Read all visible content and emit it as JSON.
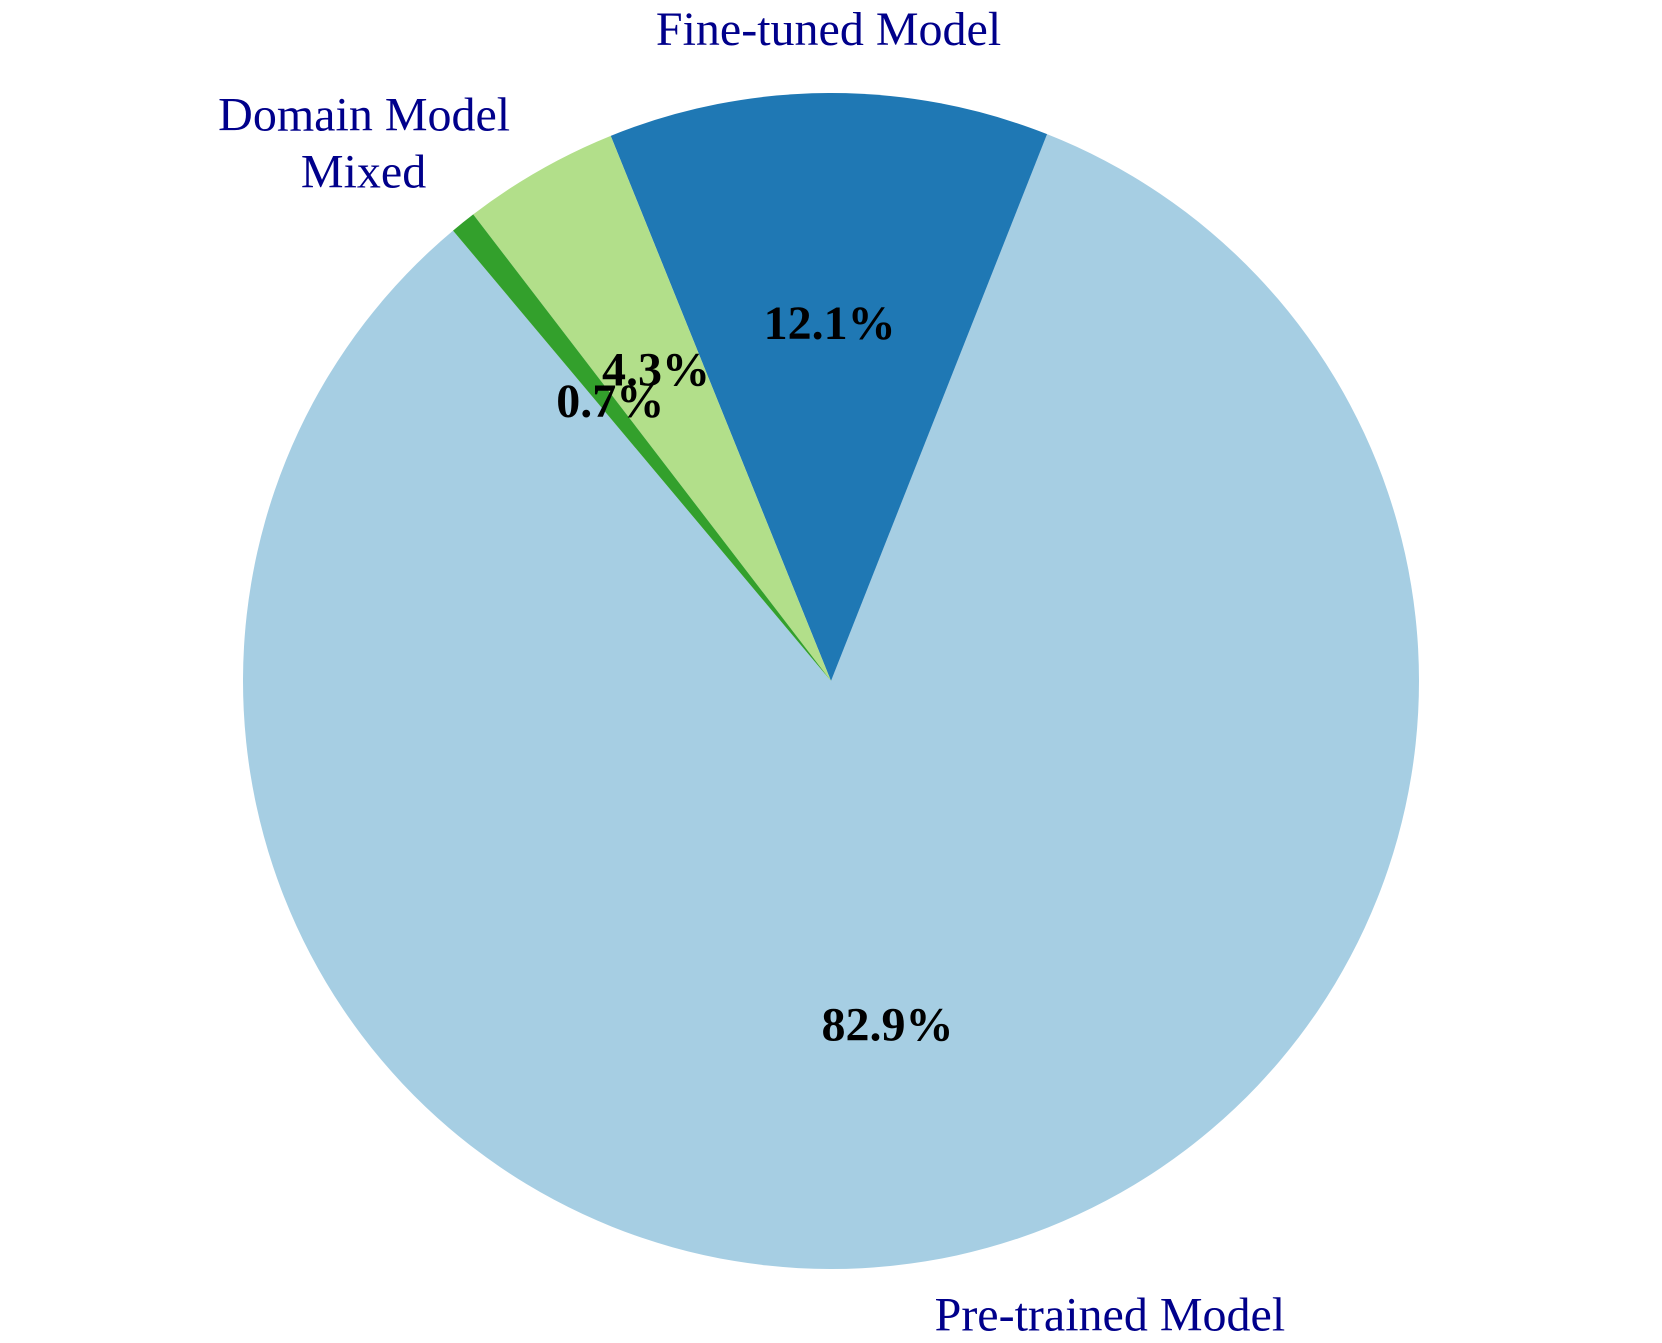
{
  "chart_data": {
    "type": "pie",
    "title": "",
    "start_angle_deg": 130.0,
    "direction": "counterclockwise",
    "slices": [
      {
        "label": "Pre-trained Model",
        "value": 82.9,
        "pct_label": "82.9%",
        "color": "#a6cee3"
      },
      {
        "label": "Fine-tuned Model",
        "value": 12.1,
        "pct_label": "12.1%",
        "color": "#1f78b4"
      },
      {
        "label": "Domain Model",
        "value": 4.3,
        "pct_label": "4.3%",
        "color": "#b2df8a"
      },
      {
        "label": "Mixed",
        "value": 0.7,
        "pct_label": "0.7%",
        "color": "#33a02c"
      }
    ]
  }
}
